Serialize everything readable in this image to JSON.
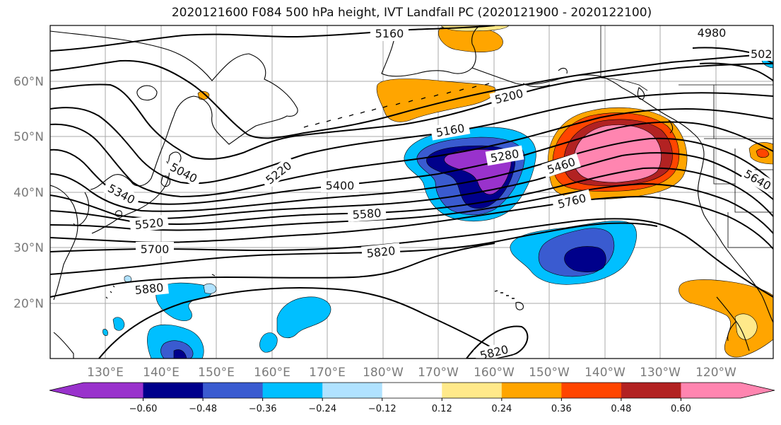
{
  "title": "2020121600 F084 500 hPa height, IVT Landfall PC (2020121900 - 2020122100)",
  "lon_labels": [
    "130°E",
    "140°E",
    "150°E",
    "160°E",
    "170°E",
    "180°W",
    "170°W",
    "160°W",
    "150°W",
    "140°W",
    "130°W",
    "120°W"
  ],
  "lat_labels": [
    "60°N",
    "50°N",
    "40°N",
    "30°N",
    "20°N"
  ],
  "contour_labels": [
    "5160",
    "4980",
    "502",
    "5200",
    "5160",
    "5280",
    "5460",
    "5040",
    "5220",
    "5340",
    "5400",
    "5520",
    "5580",
    "5640",
    "5760",
    "5700",
    "5820",
    "5880",
    "5820"
  ],
  "colorbar": {
    "ticks": [
      "−0.60",
      "−0.48",
      "−0.36",
      "−0.24",
      "−0.12",
      "0.12",
      "0.24",
      "0.36",
      "0.48",
      "0.60"
    ],
    "colors": [
      "#9932cc",
      "#00008b",
      "#3a5bd0",
      "#00bfff",
      "#b0e2ff",
      "#ffffff",
      "#ffe98a",
      "#ffa500",
      "#ff4500",
      "#b22222",
      "#ff85b0"
    ]
  }
}
